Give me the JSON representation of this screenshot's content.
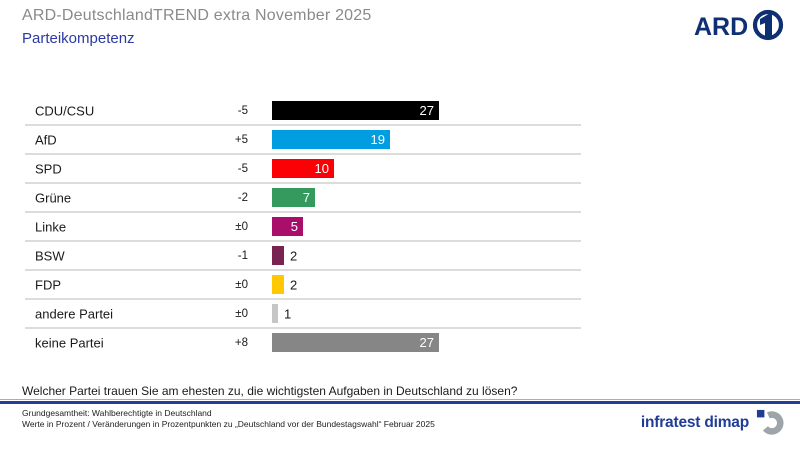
{
  "header": {
    "title": "ARD-DeutschlandTREND extra November 2025",
    "subtitle": "Parteikompetenz",
    "ard_logo_text": "ARD"
  },
  "chart_data": {
    "type": "bar",
    "orientation": "horizontal",
    "title": "Parteikompetenz",
    "unit": "Prozent",
    "xlim": [
      0,
      30
    ],
    "categories": [
      "CDU/CSU",
      "AfD",
      "SPD",
      "Grüne",
      "Linke",
      "BSW",
      "FDP",
      "andere Partei",
      "keine Partei"
    ],
    "values": [
      27,
      19,
      10,
      7,
      5,
      2,
      2,
      1,
      27
    ],
    "changes": [
      "-5",
      "+5",
      "-5",
      "-2",
      "±0",
      "-1",
      "±0",
      "±0",
      "+8"
    ],
    "colors": [
      "#000000",
      "#009EE0",
      "#FB0004",
      "#349A5E",
      "#A90E6B",
      "#7A2350",
      "#FFC800",
      "#C6C6C6",
      "#868686"
    ],
    "label_inside": [
      true,
      true,
      true,
      true,
      true,
      false,
      false,
      false,
      true
    ]
  },
  "question": "Welcher Partei trauen Sie am ehesten zu, die wichtigsten Aufgaben in Deutschland zu lösen?",
  "footer": {
    "line1": "Grundgesamtheit: Wahlberechtigte in Deutschland",
    "line2": "Werte in Prozent / Veränderungen in Prozentpunkten zu „Deutschland vor der Bundestagswahl“ Februar 2025",
    "brand": "infratest dimap"
  },
  "theme_colors": {
    "title_gray": "#8A8A8A",
    "subtitle_blue": "#2B3AA5",
    "ard_navy": "#0E2F72",
    "divider_blue": "#243E90",
    "separator_gray": "#DCDCDC",
    "brand_blue": "#203C96",
    "brand_mark_gray": "#9EA5AA"
  }
}
